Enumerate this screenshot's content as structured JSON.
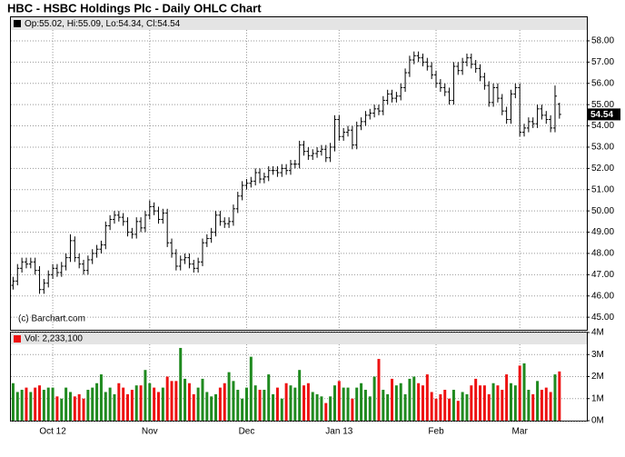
{
  "chart_data": {
    "type": "ohlc",
    "title": "HBC - HSBC Holdings Plc - Daily OHLC Chart",
    "ohlc_legend": "Op:55.02, Hi:55.09, Lo:54.34, Cl:54.54",
    "volume_legend": "Vol: 2,233,100",
    "watermark": "(c) Barchart.com",
    "categories": [
      null,
      null,
      null,
      null,
      null,
      null,
      null,
      null,
      null,
      "Oct 12",
      null,
      null,
      null,
      null,
      null,
      null,
      null,
      null,
      null,
      null,
      null,
      null,
      null,
      null,
      null,
      null,
      null,
      null,
      null,
      null,
      null,
      "Nov",
      null,
      null,
      null,
      null,
      null,
      null,
      null,
      null,
      null,
      null,
      null,
      null,
      null,
      null,
      null,
      null,
      null,
      null,
      null,
      null,
      null,
      "Dec",
      null,
      null,
      null,
      null,
      null,
      null,
      null,
      null,
      null,
      null,
      null,
      null,
      null,
      null,
      null,
      null,
      null,
      null,
      null,
      null,
      "Jan 13",
      null,
      null,
      null,
      null,
      null,
      null,
      null,
      null,
      null,
      null,
      null,
      null,
      null,
      null,
      null,
      null,
      null,
      null,
      null,
      null,
      null,
      "Feb",
      null,
      null,
      null,
      null,
      null,
      null,
      null,
      null,
      null,
      null,
      null,
      null,
      null,
      null,
      null,
      null,
      null,
      null,
      "Mar",
      null,
      null,
      null,
      null,
      null,
      null,
      null,
      null,
      null
    ],
    "open": [
      46.5,
      46.7,
      47.3,
      47.6,
      47.5,
      47.6,
      47.2,
      46.3,
      46.6,
      47.0,
      47.3,
      47.1,
      47.4,
      47.8,
      48.6,
      47.8,
      47.5,
      47.2,
      47.7,
      48.0,
      48.2,
      48.4,
      49.3,
      49.6,
      49.8,
      49.7,
      49.5,
      49.0,
      48.9,
      49.5,
      49.2,
      49.8,
      50.2,
      50.0,
      49.6,
      49.9,
      48.5,
      48.0,
      47.4,
      47.7,
      47.8,
      47.5,
      47.3,
      47.6,
      48.5,
      48.7,
      49.0,
      49.8,
      49.5,
      49.4,
      49.5,
      50.1,
      50.7,
      51.2,
      51.3,
      51.4,
      51.8,
      51.5,
      51.6,
      51.9,
      51.9,
      51.8,
      52.0,
      51.9,
      52.2,
      52.2,
      53.1,
      52.8,
      52.6,
      52.7,
      52.8,
      52.9,
      52.5,
      53.0,
      54.3,
      53.5,
      53.7,
      53.8,
      53.1,
      54.0,
      54.2,
      54.5,
      54.6,
      54.8,
      54.7,
      55.2,
      55.5,
      55.3,
      55.4,
      55.8,
      56.5,
      57.1,
      57.3,
      57.2,
      57.0,
      56.8,
      56.4,
      56.0,
      55.8,
      55.6,
      55.2,
      56.8,
      56.6,
      57.0,
      57.2,
      56.9,
      56.7,
      56.3,
      55.9,
      55.1,
      55.8,
      55.3,
      54.7,
      54.3,
      55.5,
      55.8,
      53.7,
      53.9,
      54.2,
      54.1,
      54.8,
      54.5,
      54.3,
      53.9,
      55.02
    ],
    "high": [
      46.9,
      47.5,
      47.8,
      47.8,
      47.8,
      47.8,
      47.4,
      46.8,
      47.2,
      47.5,
      47.5,
      47.6,
      48.0,
      48.9,
      48.8,
      48.0,
      47.7,
      47.9,
      48.2,
      48.4,
      48.6,
      49.5,
      49.8,
      50.0,
      50.0,
      49.9,
      49.7,
      49.2,
      49.7,
      49.7,
      50.0,
      50.5,
      50.4,
      50.2,
      50.1,
      50.1,
      48.7,
      48.2,
      47.9,
      48.0,
      48.0,
      47.7,
      47.8,
      48.7,
      48.9,
      49.2,
      50.0,
      50.0,
      49.7,
      49.7,
      50.3,
      50.9,
      51.4,
      51.5,
      51.6,
      52.0,
      52.0,
      51.8,
      52.1,
      52.1,
      52.1,
      52.2,
      52.2,
      52.4,
      52.4,
      53.3,
      53.3,
      53.0,
      52.9,
      53.0,
      53.1,
      53.1,
      53.2,
      54.5,
      54.5,
      53.9,
      54.0,
      54.0,
      54.2,
      54.4,
      54.7,
      54.8,
      55.0,
      55.0,
      55.4,
      55.7,
      55.7,
      55.6,
      56.0,
      56.7,
      57.3,
      57.5,
      57.5,
      57.4,
      57.2,
      57.0,
      56.6,
      56.2,
      56.0,
      55.8,
      57.0,
      57.0,
      57.2,
      57.4,
      57.4,
      57.1,
      56.9,
      56.5,
      56.1,
      56.0,
      56.0,
      55.5,
      54.9,
      55.7,
      56.0,
      56.0,
      54.1,
      54.4,
      54.4,
      55.0,
      55.0,
      54.7,
      54.5,
      55.9,
      55.09
    ],
    "low": [
      46.3,
      46.5,
      47.1,
      47.3,
      47.3,
      47.0,
      46.1,
      46.1,
      46.4,
      46.8,
      46.9,
      46.9,
      47.2,
      47.6,
      47.6,
      47.3,
      47.0,
      47.0,
      47.5,
      47.8,
      48.0,
      48.2,
      49.1,
      49.4,
      49.5,
      49.3,
      48.8,
      48.7,
      48.7,
      49.0,
      49.0,
      49.6,
      49.8,
      49.4,
      49.4,
      48.3,
      47.8,
      47.2,
      47.2,
      47.5,
      47.3,
      47.1,
      47.1,
      47.4,
      48.3,
      48.5,
      48.8,
      49.3,
      49.2,
      49.2,
      49.3,
      49.9,
      50.5,
      51.0,
      51.1,
      51.2,
      51.3,
      51.3,
      51.4,
      51.7,
      51.6,
      51.6,
      51.7,
      51.7,
      52.0,
      52.0,
      52.6,
      52.4,
      52.4,
      52.5,
      52.6,
      52.3,
      52.3,
      52.8,
      53.3,
      53.3,
      53.5,
      52.9,
      52.9,
      53.8,
      54.0,
      54.3,
      54.4,
      54.5,
      54.5,
      55.0,
      55.1,
      55.1,
      55.2,
      55.6,
      56.3,
      56.9,
      57.0,
      56.8,
      56.6,
      56.2,
      55.8,
      55.6,
      55.4,
      55.0,
      55.0,
      56.4,
      56.4,
      56.8,
      56.7,
      56.5,
      56.1,
      55.7,
      54.9,
      54.9,
      55.1,
      54.5,
      54.1,
      54.1,
      55.3,
      53.5,
      53.5,
      53.7,
      53.9,
      53.9,
      54.3,
      54.1,
      53.7,
      53.7,
      54.34
    ],
    "close": [
      46.7,
      47.3,
      47.6,
      47.5,
      47.6,
      47.2,
      46.3,
      46.6,
      47.0,
      47.3,
      47.1,
      47.4,
      47.8,
      48.6,
      47.8,
      47.5,
      47.2,
      47.7,
      48.0,
      48.2,
      48.4,
      49.3,
      49.6,
      49.8,
      49.7,
      49.5,
      49.0,
      48.9,
      49.5,
      49.2,
      49.8,
      50.2,
      50.0,
      49.6,
      49.9,
      48.5,
      48.0,
      47.4,
      47.7,
      47.8,
      47.5,
      47.3,
      47.6,
      48.5,
      48.7,
      49.0,
      49.8,
      49.5,
      49.4,
      49.5,
      50.1,
      50.7,
      51.2,
      51.3,
      51.4,
      51.8,
      51.5,
      51.6,
      51.9,
      51.9,
      51.8,
      52.0,
      51.9,
      52.2,
      52.2,
      53.1,
      52.8,
      52.6,
      52.7,
      52.8,
      52.9,
      52.5,
      53.0,
      54.3,
      53.5,
      53.7,
      53.8,
      53.1,
      54.0,
      54.2,
      54.5,
      54.6,
      54.8,
      54.7,
      55.2,
      55.5,
      55.3,
      55.4,
      55.8,
      56.5,
      57.1,
      57.3,
      57.2,
      57.0,
      56.8,
      56.4,
      56.0,
      55.8,
      55.6,
      55.2,
      56.8,
      56.6,
      57.0,
      57.2,
      56.9,
      56.7,
      56.3,
      55.9,
      55.1,
      55.8,
      55.3,
      54.7,
      54.3,
      55.5,
      55.8,
      53.7,
      53.9,
      54.2,
      54.1,
      54.8,
      54.5,
      54.3,
      53.9,
      55.4,
      54.54
    ],
    "volume": [
      1.7,
      1.3,
      1.4,
      1.5,
      1.3,
      1.5,
      1.6,
      1.4,
      1.5,
      1.5,
      1.1,
      1.0,
      1.5,
      1.3,
      1.1,
      1.2,
      1.0,
      1.4,
      1.5,
      1.7,
      2.1,
      1.3,
      1.5,
      1.2,
      1.7,
      1.5,
      1.2,
      1.4,
      1.6,
      1.6,
      2.3,
      1.7,
      1.5,
      1.3,
      1.5,
      2.0,
      1.8,
      1.8,
      3.3,
      1.9,
      1.7,
      1.2,
      1.5,
      1.9,
      1.3,
      1.1,
      1.2,
      1.5,
      1.7,
      2.2,
      1.8,
      1.4,
      1.0,
      1.5,
      2.9,
      1.6,
      1.4,
      1.4,
      2.1,
      1.2,
      1.5,
      1.0,
      1.7,
      1.6,
      1.5,
      2.3,
      1.6,
      1.7,
      1.3,
      1.2,
      1.1,
      0.8,
      1.1,
      1.6,
      1.8,
      1.5,
      1.5,
      1.0,
      1.5,
      1.7,
      1.4,
      1.1,
      2.0,
      2.8,
      1.4,
      1.2,
      1.9,
      1.6,
      1.7,
      1.2,
      1.9,
      2.0,
      1.7,
      1.6,
      2.1,
      1.3,
      1.0,
      1.2,
      1.4,
      1.0,
      1.4,
      0.9,
      1.3,
      1.2,
      1.6,
      1.9,
      1.6,
      1.6,
      1.2,
      1.7,
      1.6,
      1.4,
      2.1,
      1.7,
      1.6,
      2.5,
      2.6,
      1.4,
      1.2,
      1.8,
      1.4,
      1.5,
      1.3,
      2.1,
      2.2331
    ],
    "bar_color": "#000000",
    "up_color": "#1f8a1f",
    "down_color": "#ee1111",
    "grid": true,
    "ylim": [
      44.45,
      58.34
    ],
    "yticks": [
      {
        "value": 45,
        "label": "45.00"
      },
      {
        "value": 46,
        "label": "46.00"
      },
      {
        "value": 47,
        "label": "47.00"
      },
      {
        "value": 48,
        "label": "48.00"
      },
      {
        "value": 49,
        "label": "49.00"
      },
      {
        "value": 50,
        "label": "50.00"
      },
      {
        "value": 51,
        "label": "51.00"
      },
      {
        "value": 52,
        "label": "52.00"
      },
      {
        "value": 53,
        "label": "53.00"
      },
      {
        "value": 54,
        "label": "54.00"
      },
      {
        "value": 55,
        "label": "55.00"
      },
      {
        "value": 56,
        "label": "56.00"
      },
      {
        "value": 57,
        "label": "57.00"
      },
      {
        "value": 58,
        "label": "58.00"
      }
    ],
    "volume_ylim": [
      0,
      4.04
    ],
    "volume_yticks": [
      {
        "value": 0,
        "label": "0M"
      },
      {
        "value": 1,
        "label": "1M"
      },
      {
        "value": 2,
        "label": "2M"
      },
      {
        "value": 3,
        "label": "3M"
      },
      {
        "value": 4,
        "label": "4M"
      }
    ]
  }
}
